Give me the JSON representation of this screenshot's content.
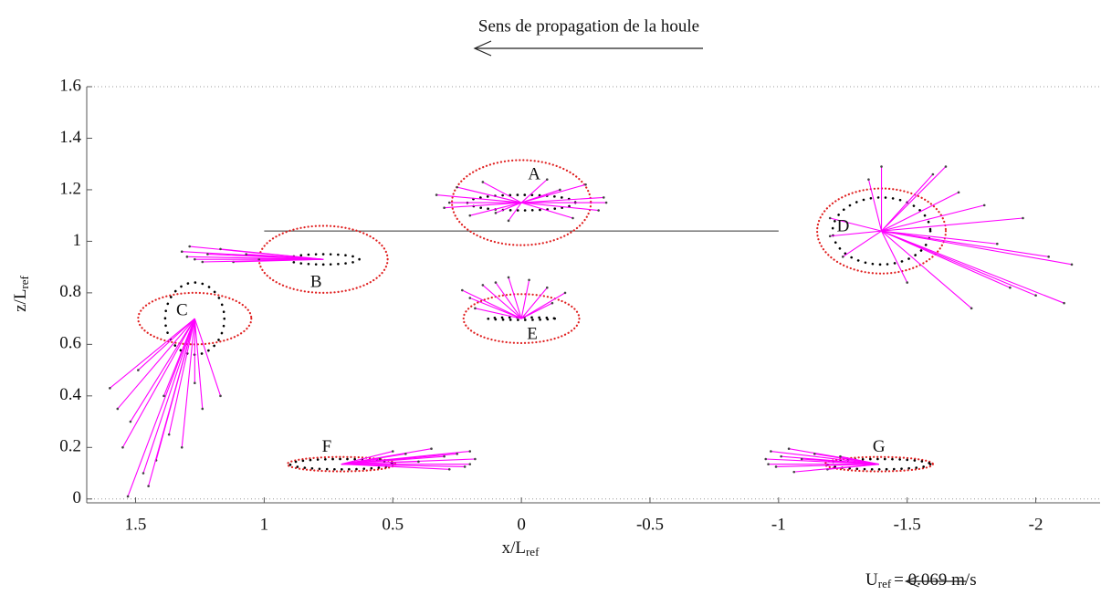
{
  "chart_data": {
    "type": "vector_field",
    "title": "Sens de propagation de la houle",
    "xlabel": "x/L",
    "xlabel_sub": "ref",
    "ylabel": "z/L",
    "ylabel_sub": "ref",
    "xlim": [
      1.69,
      -2.25
    ],
    "ylim": [
      -0.015,
      1.6
    ],
    "xticks": [
      1.5,
      1,
      0.5,
      0,
      -0.5,
      -1,
      -1.5,
      -2
    ],
    "yticks": [
      0,
      0.2,
      0.4,
      0.6,
      0.8,
      1,
      1.2,
      1.4,
      1.6
    ],
    "hlines": [
      0,
      1.6
    ],
    "segment": {
      "x": [
        1,
        -1
      ],
      "z": 1.04
    },
    "vector_color": "#ff00ff",
    "ellipse_color": "#e02020",
    "orbit_color": "#000000",
    "reference": {
      "label": "U",
      "sub": "ref",
      "value": 0.069,
      "value_label": "= 0.069 m/s"
    },
    "points": [
      {
        "label": "A",
        "x": 0,
        "z": 1.15,
        "rx": 0.27,
        "rz": 0.165,
        "orbit_rx": 0.21,
        "orbit_rz": 0.03,
        "vectors": [
          [
            0.33,
            0.03
          ],
          [
            0.3,
            -0.02
          ],
          [
            0.25,
            0.06
          ],
          [
            0.2,
            -0.05
          ],
          [
            0.15,
            0.08
          ],
          [
            -0.32,
            0.02
          ],
          [
            -0.3,
            -0.03
          ],
          [
            -0.25,
            0.07
          ],
          [
            -0.2,
            -0.06
          ],
          [
            -0.1,
            0.09
          ],
          [
            0.05,
            -0.07
          ],
          [
            -0.33,
            0.0
          ],
          [
            0.28,
            0.0
          ],
          [
            0.1,
            -0.04
          ],
          [
            -0.15,
            0.05
          ]
        ]
      },
      {
        "label": "B",
        "x": 0.77,
        "z": 0.93,
        "rx": 0.25,
        "rz": 0.13,
        "orbit_rx": 0.14,
        "orbit_rz": 0.02,
        "vectors": [
          [
            0.55,
            0.03
          ],
          [
            0.52,
            0.05
          ],
          [
            0.5,
            0.0
          ],
          [
            0.45,
            0.02
          ],
          [
            0.4,
            0.04
          ],
          [
            0.35,
            -0.01
          ],
          [
            0.3,
            0.02
          ],
          [
            0.25,
            0.0
          ],
          [
            0.53,
            0.01
          ],
          [
            0.47,
            -0.01
          ]
        ]
      },
      {
        "label": "C",
        "x": 1.27,
        "z": 0.7,
        "rx": 0.22,
        "rz": 0.1,
        "orbit_rx": 0.115,
        "orbit_rz": 0.14,
        "vectors": [
          [
            0.33,
            -0.27
          ],
          [
            0.3,
            -0.35
          ],
          [
            0.26,
            -0.69
          ],
          [
            0.2,
            -0.6
          ],
          [
            0.15,
            -0.55
          ],
          [
            0.1,
            -0.45
          ],
          [
            0.05,
            -0.5
          ],
          [
            -0.03,
            -0.35
          ],
          [
            -0.1,
            -0.3
          ],
          [
            0.25,
            -0.4
          ],
          [
            0.28,
            -0.5
          ],
          [
            0.18,
            -0.65
          ],
          [
            0.12,
            -0.3
          ],
          [
            0.0,
            -0.25
          ],
          [
            0.22,
            -0.2
          ]
        ]
      },
      {
        "label": "D",
        "x": -1.4,
        "z": 1.04,
        "rx": 0.25,
        "rz": 0.165,
        "orbit_rx": 0.19,
        "orbit_rz": 0.13,
        "vectors": [
          [
            -0.74,
            -0.13
          ],
          [
            -0.71,
            -0.28
          ],
          [
            -0.6,
            -0.25
          ],
          [
            -0.5,
            -0.22
          ],
          [
            -0.65,
            -0.1
          ],
          [
            -0.55,
            0.05
          ],
          [
            -0.4,
            0.1
          ],
          [
            -0.3,
            0.15
          ],
          [
            -0.2,
            0.22
          ],
          [
            0.0,
            0.25
          ],
          [
            0.05,
            0.2
          ],
          [
            0.2,
            0.05
          ],
          [
            0.15,
            -0.1
          ],
          [
            0.2,
            -0.02
          ],
          [
            -0.1,
            -0.2
          ],
          [
            -0.35,
            -0.3
          ],
          [
            -0.25,
            0.25
          ],
          [
            -0.45,
            -0.05
          ]
        ]
      },
      {
        "label": "E",
        "x": 0,
        "z": 0.7,
        "rx": 0.225,
        "rz": 0.095,
        "orbit_rx": 0.13,
        "orbit_rz": 0.005,
        "vectors": [
          [
            0.23,
            0.11
          ],
          [
            0.2,
            0.08
          ],
          [
            0.15,
            0.13
          ],
          [
            0.1,
            0.14
          ],
          [
            0.05,
            0.16
          ],
          [
            -0.03,
            0.15
          ],
          [
            -0.1,
            0.12
          ],
          [
            -0.17,
            0.1
          ],
          [
            -0.12,
            0.06
          ],
          [
            0.18,
            0.04
          ]
        ]
      },
      {
        "label": "F",
        "x": 0.7,
        "z": 0.135,
        "rx": 0.21,
        "rz": 0.028,
        "orbit_rx": 0.2,
        "orbit_rz": 0.02,
        "vectors": [
          [
            -0.52,
            0.02
          ],
          [
            -0.5,
            0.05
          ],
          [
            -0.48,
            -0.01
          ],
          [
            -0.45,
            0.04
          ],
          [
            -0.4,
            0.03
          ],
          [
            -0.35,
            0.06
          ],
          [
            -0.3,
            0.01
          ],
          [
            -0.25,
            0.04
          ],
          [
            -0.2,
            0.05
          ],
          [
            -0.5,
            0.0
          ],
          [
            -0.42,
            -0.02
          ],
          [
            -0.15,
            0.02
          ]
        ]
      },
      {
        "label": "G",
        "x": -1.39,
        "z": 0.135,
        "rx": 0.21,
        "rz": 0.028,
        "orbit_rx": 0.2,
        "orbit_rz": 0.02,
        "vectors": [
          [
            0.44,
            0.02
          ],
          [
            0.42,
            0.05
          ],
          [
            0.4,
            -0.01
          ],
          [
            0.38,
            0.03
          ],
          [
            0.35,
            0.06
          ],
          [
            0.3,
            0.02
          ],
          [
            0.25,
            0.04
          ],
          [
            0.2,
            -0.02
          ],
          [
            0.43,
            0.0
          ],
          [
            0.33,
            -0.03
          ],
          [
            0.15,
            0.03
          ]
        ]
      }
    ]
  }
}
